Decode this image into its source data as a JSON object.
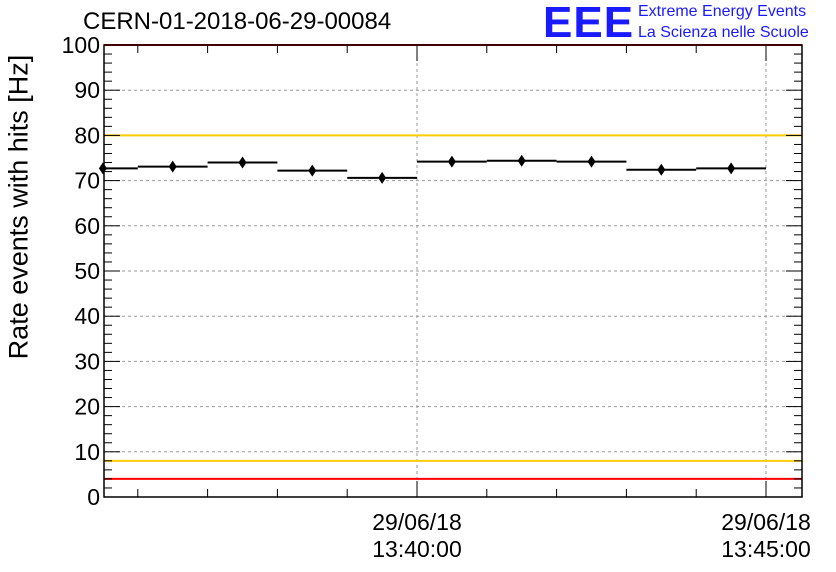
{
  "header": {
    "title": "CERN-01-2018-06-29-00084",
    "logo_text": "EEE",
    "logo_line1": "Extreme Energy Events",
    "logo_line2": "La Scienza nelle Scuole"
  },
  "colors": {
    "limit_red": "#ff0000",
    "limit_yellow": "#ffcc00",
    "markers": "#000000",
    "logo_blue": "#1a1aff"
  },
  "chart_data": {
    "type": "scatter",
    "title": "CERN-01-2018-06-29-00084",
    "xlabel": "",
    "ylabel": "Rate events with hits [Hz]",
    "ylim": [
      0,
      100
    ],
    "yticks": [
      0,
      10,
      20,
      30,
      40,
      50,
      60,
      70,
      80,
      90,
      100
    ],
    "xtick_labels": [
      {
        "date": "29/06/18",
        "time": "13:40:00"
      },
      {
        "date": "29/06/18",
        "time": "13:45:00"
      }
    ],
    "grid": true,
    "series": [
      {
        "x": [
          "13:35:30",
          "13:36:30",
          "13:37:30",
          "13:38:30",
          "13:39:30",
          "13:40:30",
          "13:41:30",
          "13:42:30",
          "13:43:30",
          "13:44:30"
        ],
        "y": [
          72.7,
          73.1,
          74.0,
          72.2,
          70.6,
          74.2,
          74.4,
          74.2,
          72.4,
          72.7
        ]
      }
    ],
    "reference_lines": [
      {
        "y": 80,
        "color": "yellow"
      },
      {
        "y": 8,
        "color": "yellow"
      },
      {
        "y": 100,
        "color": "red"
      },
      {
        "y": 4,
        "color": "red"
      }
    ]
  }
}
